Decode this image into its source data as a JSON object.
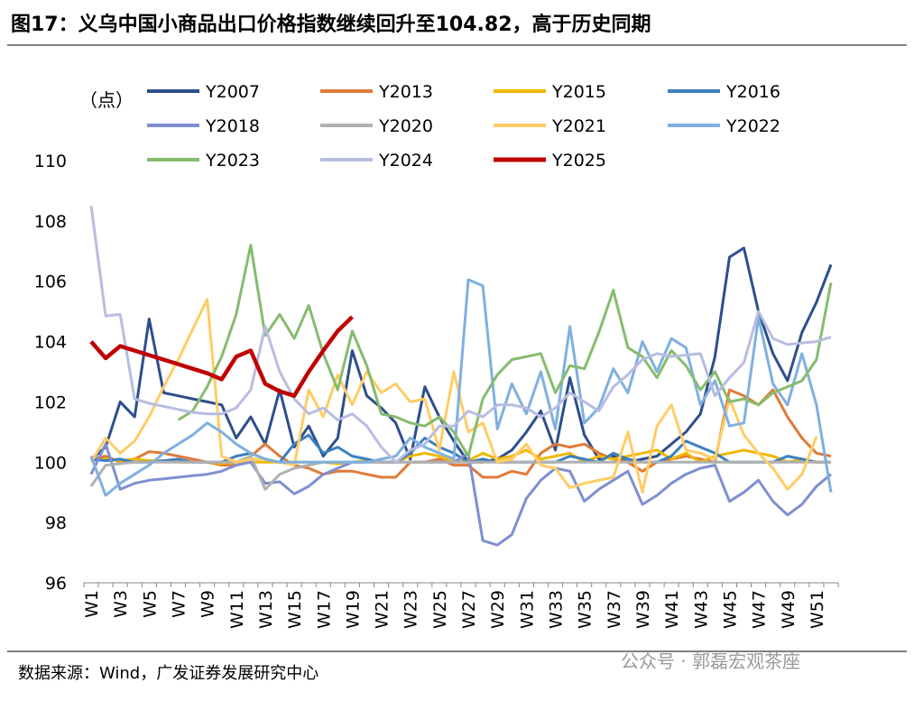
{
  "chart_data": {
    "type": "line",
    "title": "图17：义乌中国小商品出口价格指数继续回升至104.82，高于历史同期",
    "y_label": "（点）",
    "source": "数据来源：Wind，广发证券发展研究中心",
    "watermark": "公众号 · 郭磊宏观茶座",
    "categories": [
      "W1",
      null,
      "W3",
      null,
      "W5",
      null,
      "W7",
      null,
      "W9",
      null,
      "W11",
      null,
      "W13",
      null,
      "W15",
      null,
      "W17",
      null,
      "W19",
      null,
      "W21",
      null,
      "W23",
      null,
      "W25",
      null,
      "W27",
      null,
      "W29",
      null,
      "W31",
      null,
      "W33",
      null,
      "W35",
      null,
      "W37",
      null,
      "W39",
      null,
      "W41",
      null,
      "W43",
      null,
      "W45",
      null,
      "W47",
      null,
      "W49",
      null,
      "W51",
      null
    ],
    "ylim": [
      96,
      110
    ],
    "yticks": [
      96,
      98,
      100,
      102,
      104,
      106,
      108,
      110
    ],
    "series": [
      {
        "name": "Y2007",
        "color": "#2e4e8c",
        "values": [
          100.1,
          100.5,
          102.0,
          101.5,
          104.75,
          102.3,
          102.2,
          102.1,
          102.0,
          101.9,
          100.8,
          101.5,
          100.6,
          102.4,
          100.5,
          101.2,
          100.2,
          100.8,
          103.7,
          102.2,
          101.8,
          101.3,
          100.1,
          102.5,
          101.5,
          100.7,
          100.0,
          100.0,
          100.1,
          100.4,
          101.0,
          101.7,
          100.4,
          102.8,
          100.9,
          100.1,
          100.2,
          100.0,
          100.1,
          100.2,
          100.6,
          101.0,
          101.6,
          103.5,
          106.8,
          107.1,
          105.0,
          103.6,
          102.7,
          104.3,
          105.3,
          106.55
        ]
      },
      {
        "name": "Y2013",
        "color": "#e07b39",
        "values": [
          100.1,
          100.2,
          100.0,
          100.1,
          100.35,
          100.3,
          100.2,
          100.1,
          100.0,
          99.9,
          99.9,
          100.2,
          100.6,
          100.2,
          99.9,
          99.8,
          99.6,
          99.7,
          99.7,
          99.6,
          99.5,
          99.5,
          100.0,
          100.0,
          100.1,
          99.9,
          99.9,
          99.5,
          99.5,
          99.7,
          99.6,
          100.3,
          100.6,
          100.5,
          100.6,
          100.3,
          100.1,
          100.0,
          99.7,
          100.0,
          100.1,
          100.2,
          100.1,
          100.0,
          102.4,
          102.2,
          101.9,
          102.4,
          101.5,
          100.8,
          100.3,
          100.2
        ]
      },
      {
        "name": "Y2015",
        "color": "#f0b800",
        "values": [
          100.05,
          100.1,
          100.05,
          100.1,
          100.05,
          100.05,
          100.0,
          100.0,
          100.0,
          99.95,
          100.0,
          100.0,
          100.0,
          100.0,
          100.0,
          100.0,
          100.0,
          99.95,
          100.0,
          100.05,
          100.0,
          100.0,
          100.2,
          100.3,
          100.2,
          100.0,
          100.05,
          100.3,
          100.1,
          100.2,
          100.4,
          100.1,
          100.2,
          100.3,
          100.0,
          100.2,
          100.1,
          100.2,
          100.3,
          100.4,
          100.1,
          100.3,
          100.0,
          100.2,
          100.3,
          100.4,
          100.3,
          100.2,
          100.0,
          100.1,
          100.0,
          100.0
        ]
      },
      {
        "name": "Y2016",
        "color": "#3d7fbf",
        "values": [
          100.1,
          100.05,
          100.1,
          100.0,
          100.0,
          100.05,
          100.1,
          100.0,
          100.0,
          100.0,
          100.2,
          100.3,
          100.1,
          100.0,
          100.6,
          100.9,
          100.3,
          100.5,
          100.2,
          100.1,
          100.0,
          100.0,
          100.3,
          100.8,
          100.5,
          100.3,
          100.0,
          100.1,
          100.0,
          100.0,
          100.0,
          100.0,
          100.0,
          100.2,
          100.1,
          100.0,
          100.3,
          100.1,
          100.0,
          100.0,
          100.2,
          100.7,
          100.5,
          100.3,
          100.0,
          100.0,
          100.0,
          100.0,
          100.2,
          100.1,
          100.0,
          100.0
        ]
      },
      {
        "name": "Y2018",
        "color": "#7f8fd0",
        "values": [
          99.6,
          100.6,
          99.1,
          99.3,
          99.4,
          99.45,
          99.5,
          99.55,
          99.6,
          99.7,
          99.9,
          100.0,
          99.3,
          99.35,
          98.95,
          99.2,
          99.6,
          99.8,
          100.0,
          100.0,
          100.0,
          100.0,
          100.0,
          100.0,
          100.0,
          100.0,
          100.3,
          97.4,
          97.25,
          97.6,
          98.8,
          99.4,
          99.8,
          99.7,
          98.7,
          99.1,
          99.4,
          99.7,
          98.6,
          98.9,
          99.3,
          99.6,
          99.8,
          99.9,
          98.7,
          99.0,
          99.4,
          98.7,
          98.25,
          98.6,
          99.2,
          99.6
        ]
      },
      {
        "name": "Y2020",
        "color": "#b0b0b0",
        "values": [
          99.2,
          99.9,
          99.95,
          100.0,
          100.0,
          100.0,
          100.0,
          100.0,
          100.0,
          100.0,
          100.0,
          100.2,
          99.1,
          99.6,
          99.8,
          99.9,
          100.0,
          100.0,
          100.0,
          100.0,
          100.0,
          100.0,
          100.0,
          100.0,
          100.0,
          100.0,
          100.0,
          100.0,
          100.0,
          100.0,
          100.0,
          100.0,
          100.0,
          100.0,
          100.0,
          100.0,
          100.0,
          100.0,
          100.0,
          100.0,
          100.0,
          100.0,
          100.0,
          100.0,
          100.0,
          100.0,
          100.0,
          100.0,
          100.0,
          100.0,
          100.0,
          100.0
        ]
      },
      {
        "name": "Y2021",
        "color": "#ffcc66",
        "values": [
          100.0,
          100.8,
          100.3,
          100.7,
          101.5,
          102.5,
          103.4,
          104.4,
          105.4,
          100.2,
          100.0,
          100.1,
          100.1,
          100.0,
          99.9,
          102.4,
          101.5,
          102.9,
          101.9,
          103.0,
          102.3,
          102.6,
          102.0,
          102.1,
          100.4,
          103.0,
          101.0,
          101.3,
          100.0,
          100.1,
          100.6,
          99.9,
          99.8,
          99.15,
          99.3,
          99.4,
          99.5,
          101.0,
          99.0,
          101.2,
          101.9,
          100.4,
          100.3,
          100.1,
          102.1,
          100.9,
          100.3,
          99.8,
          99.1,
          99.6,
          100.85,
          null
        ]
      },
      {
        "name": "Y2022",
        "color": "#7fb0e0",
        "values": [
          100.2,
          98.9,
          99.3,
          99.6,
          99.9,
          100.3,
          100.6,
          100.9,
          101.3,
          101.0,
          100.6,
          100.3,
          100.1,
          100.0,
          100.0,
          100.0,
          100.0,
          100.0,
          100.0,
          100.0,
          100.1,
          100.2,
          100.8,
          100.5,
          100.3,
          100.1,
          106.05,
          105.85,
          101.1,
          102.6,
          101.6,
          103.0,
          101.1,
          104.5,
          101.3,
          101.8,
          103.1,
          102.3,
          104.0,
          103.0,
          104.1,
          103.8,
          101.9,
          102.7,
          101.2,
          101.3,
          104.8,
          102.6,
          101.9,
          103.6,
          101.9,
          99.0
        ]
      },
      {
        "name": "Y2023",
        "color": "#86bc6e",
        "values": [
          null,
          null,
          null,
          null,
          null,
          null,
          101.4,
          101.7,
          102.5,
          103.5,
          104.9,
          107.2,
          104.2,
          104.9,
          104.1,
          105.2,
          103.6,
          102.4,
          104.35,
          103.2,
          101.6,
          101.5,
          101.3,
          101.2,
          101.5,
          101.0,
          100.2,
          102.1,
          102.9,
          103.4,
          103.5,
          103.6,
          102.3,
          103.2,
          103.1,
          104.3,
          105.7,
          103.8,
          103.5,
          102.8,
          103.7,
          103.2,
          102.4,
          103.0,
          102.0,
          102.1,
          101.9,
          102.3,
          102.5,
          102.7,
          103.4,
          105.95
        ]
      },
      {
        "name": "Y2024",
        "color": "#b8bde0",
        "values": [
          108.5,
          104.85,
          104.9,
          102.1,
          101.95,
          101.85,
          101.75,
          101.65,
          101.6,
          101.6,
          101.8,
          102.4,
          104.5,
          103.0,
          102.1,
          101.6,
          101.8,
          101.4,
          101.6,
          101.2,
          100.5,
          100.0,
          100.4,
          100.6,
          101.2,
          101.2,
          101.7,
          101.5,
          101.9,
          101.9,
          101.8,
          101.5,
          101.8,
          102.3,
          102.0,
          101.7,
          102.5,
          102.9,
          103.4,
          103.6,
          103.5,
          103.55,
          103.6,
          102.2,
          102.8,
          103.3,
          105.0,
          104.1,
          103.9,
          103.95,
          104.0,
          104.15
        ]
      },
      {
        "name": "Y2025",
        "color": "#c00000",
        "values": [
          104.0,
          103.45,
          103.85,
          103.7,
          103.55,
          103.4,
          103.25,
          103.1,
          102.95,
          102.75,
          103.5,
          103.7,
          102.6,
          102.35,
          102.2,
          103.0,
          103.7,
          104.35,
          104.82,
          null,
          null,
          null,
          null,
          null,
          null,
          null,
          null,
          null,
          null,
          null,
          null,
          null,
          null,
          null,
          null,
          null,
          null,
          null,
          null,
          null,
          null,
          null,
          null,
          null,
          null,
          null,
          null,
          null,
          null,
          null,
          null,
          null
        ]
      }
    ]
  }
}
